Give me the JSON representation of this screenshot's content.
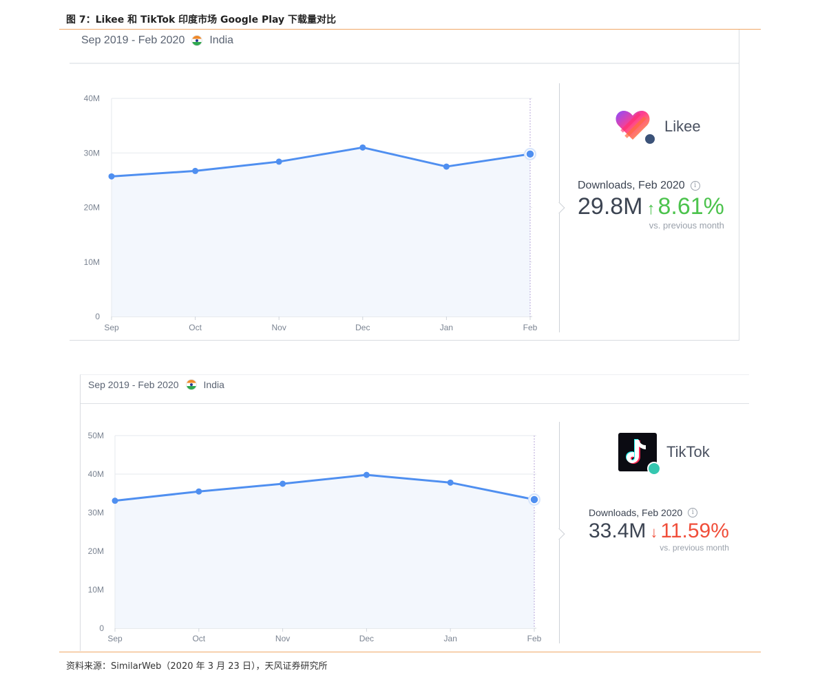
{
  "figure_title": "图 7：Likee 和 TikTok 印度市场 Google Play 下载量对比",
  "source": "资料来源：SimilarWeb（2020 年 3 月 23 日），天风证券研究所",
  "colors": {
    "line": "#4f8ff0",
    "area": "#f3f7fd",
    "up": "#4cc34d",
    "down": "#f04e3a",
    "rule": "#f0a765"
  },
  "panels": [
    {
      "range": "Sep 2019 - Feb 2020",
      "country": "India",
      "country_icon": "india-flag-icon",
      "app_name": "Likee",
      "app_icon": "likee-logo-icon",
      "stat_label": "Downloads, Feb 2020",
      "stat_value": "29.8M",
      "change_arrow": "↑",
      "change_pct": "8.61%",
      "change_direction": "up",
      "vs_text": "vs. previous month"
    },
    {
      "range": "Sep 2019 - Feb 2020",
      "country": "India",
      "country_icon": "india-flag-icon",
      "app_name": "TikTok",
      "app_icon": "tiktok-logo-icon",
      "stat_label": "Downloads, Feb 2020",
      "stat_value": "33.4M",
      "change_arrow": "↓",
      "change_pct": "11.59%",
      "change_direction": "down",
      "vs_text": "vs. previous month"
    }
  ],
  "chart_data": [
    {
      "type": "area",
      "categories": [
        "Sep",
        "Oct",
        "Nov",
        "Dec",
        "Jan",
        "Feb"
      ],
      "series": [
        {
          "values": [
            25.7,
            26.7,
            28.4,
            31.0,
            27.5,
            29.8
          ]
        }
      ],
      "yticks": [
        "0",
        "10M",
        "20M",
        "30M",
        "40M"
      ],
      "ylim": [
        0,
        40
      ],
      "y_unit": "M",
      "grid": true,
      "highlight_last": true
    },
    {
      "type": "area",
      "categories": [
        "Sep",
        "Oct",
        "Nov",
        "Dec",
        "Jan",
        "Feb"
      ],
      "series": [
        {
          "values": [
            33.1,
            35.5,
            37.5,
            39.8,
            37.8,
            33.4
          ]
        }
      ],
      "yticks": [
        "0",
        "10M",
        "20M",
        "30M",
        "40M",
        "50M"
      ],
      "ylim": [
        0,
        50
      ],
      "y_unit": "M",
      "grid": true,
      "highlight_last": true
    }
  ]
}
